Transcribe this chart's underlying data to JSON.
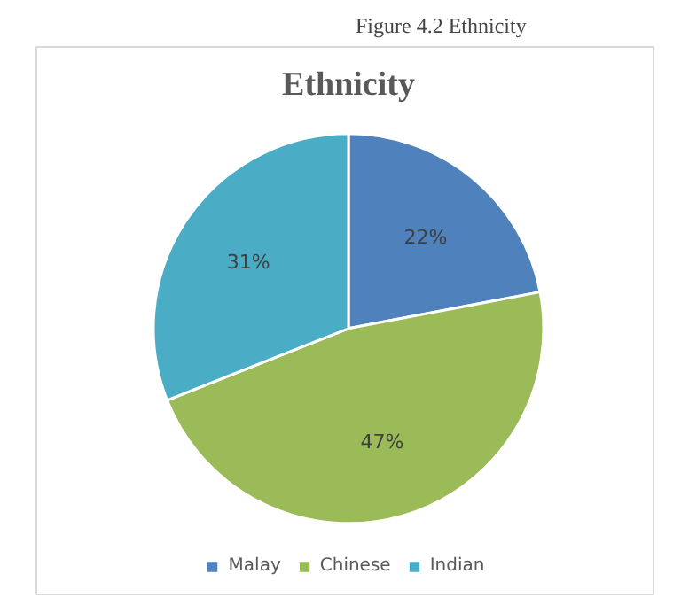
{
  "chart_data": {
    "type": "pie",
    "title": "Ethnicity",
    "annotations": [
      "Figure 4.2 Ethnicity"
    ],
    "categories": [
      "Malay",
      "Chinese",
      "Indian"
    ],
    "values": [
      22,
      47,
      31
    ],
    "colors": [
      "#4f81bd",
      "#9bbb59",
      "#4bacc6"
    ],
    "value_labels": [
      "22%",
      "47%",
      "31%"
    ],
    "legend": "bottom"
  }
}
